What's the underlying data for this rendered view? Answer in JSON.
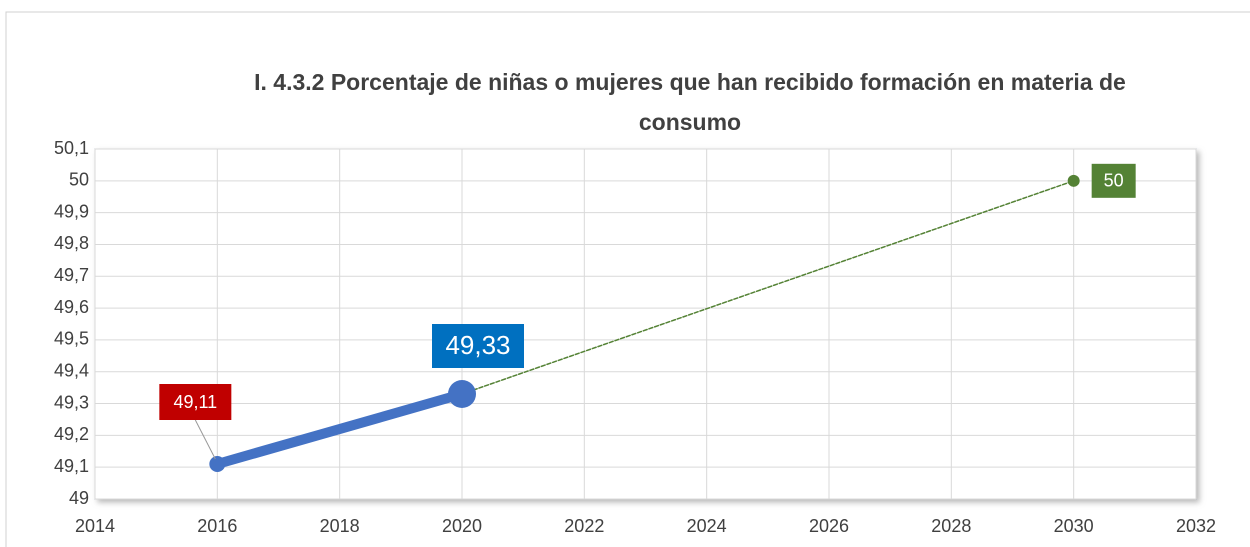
{
  "chart_data": {
    "type": "line",
    "title": "I. 4.3.2 Porcentaje de niñas o mujeres que han recibido formación en materia de consumo",
    "xlim": [
      2014,
      2032
    ],
    "xticks": [
      2014,
      2016,
      2018,
      2020,
      2022,
      2024,
      2026,
      2028,
      2030,
      2032
    ],
    "ylim": [
      49,
      50.1
    ],
    "yticks": [
      49,
      {
        "value": 49.1,
        "label": "49,1"
      },
      {
        "value": 49.2,
        "label": "49,2"
      },
      {
        "value": 49.3,
        "label": "49,3"
      },
      {
        "value": 49.4,
        "label": "49,4"
      },
      {
        "value": 49.5,
        "label": "49,5"
      },
      {
        "value": 49.6,
        "label": "49,6"
      },
      {
        "value": 49.7,
        "label": "49,7"
      },
      {
        "value": 49.8,
        "label": "49,8"
      },
      {
        "value": 49.9,
        "label": "49,9"
      },
      50,
      {
        "value": 50.1,
        "label": "50,1"
      }
    ],
    "grid": true,
    "series": [
      {
        "x": [
          2016,
          2020
        ],
        "values": [
          49.11,
          49.33
        ],
        "value_labels": [
          "49,11",
          "49,33"
        ],
        "color": "#4472c4",
        "style": "solid",
        "value_label_colors": [
          "#c00000",
          "#0070c0"
        ]
      },
      {
        "x": [
          2020,
          2030
        ],
        "values": [
          49.33,
          50
        ],
        "color": "#548235",
        "style": "dashed"
      }
    ]
  }
}
